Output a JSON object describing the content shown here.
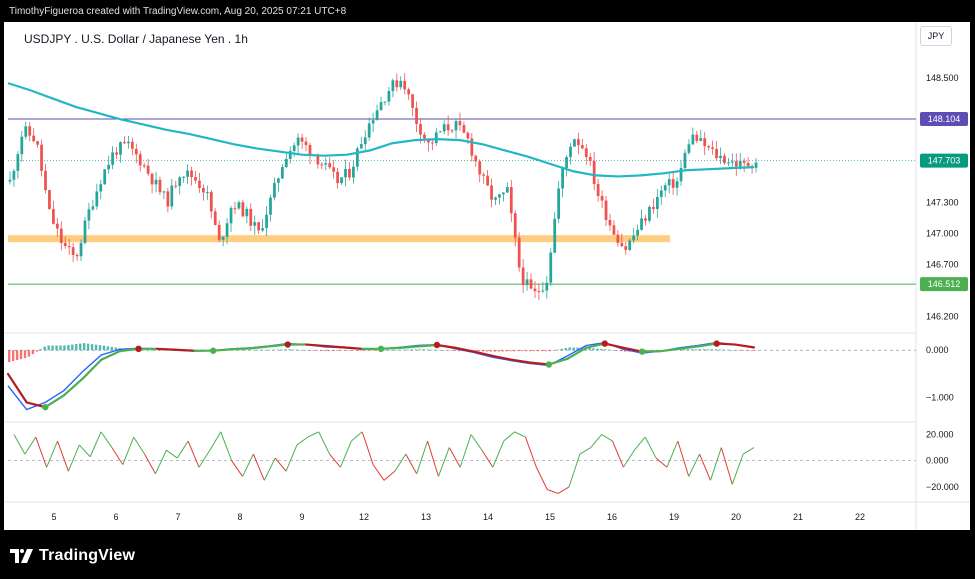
{
  "attribution": "TimothyFigueroa created with TradingView.com, Aug 20, 2025 07:21 UTC+8",
  "symbol_title": "USDJPY . U.S. Dollar / Japanese Yen . 1h",
  "currency": "JPY",
  "brand": "TradingView",
  "colors": {
    "up_candle": "#26a69a",
    "down_candle": "#ef5350",
    "ma_line": "#22b7c4",
    "resistance_line": "#5e4bb3",
    "support_line": "#4caf50",
    "zone": "#ffcc80",
    "macd_line": "#2962ff",
    "signal_up": "#4caf50",
    "signal_down": "#b71c1c"
  },
  "chart_data": [
    {
      "type": "candlestick",
      "symbol": "USDJPY",
      "timeframe": "1h",
      "x_tick_labels": [
        "5",
        "6",
        "7",
        "8",
        "9",
        "12",
        "13",
        "14",
        "15",
        "16",
        "19",
        "20",
        "21",
        "22"
      ],
      "y_tick_labels": [
        "148.500",
        "147.300",
        "147.000",
        "146.700",
        "146.200"
      ],
      "ylim": [
        146.05,
        148.75
      ],
      "price_tags": [
        {
          "label": "148.104",
          "value": 148.104,
          "color": "#5e4bb3"
        },
        {
          "label": "147.703",
          "value": 147.703,
          "color": "#089981"
        },
        {
          "label": "146.512",
          "value": 146.512,
          "color": "#4caf50"
        }
      ],
      "horizontal_lines": [
        {
          "value": 148.104,
          "color": "#5e4bb3"
        },
        {
          "value": 146.512,
          "color": "#4caf50"
        }
      ],
      "zone": {
        "value": 146.95,
        "until": "15"
      },
      "close_path": [
        147.5,
        148.0,
        147.9,
        147.2,
        146.9,
        146.75,
        147.2,
        147.55,
        147.8,
        147.85,
        147.7,
        147.5,
        147.3,
        147.6,
        147.55,
        147.4,
        146.9,
        147.3,
        147.2,
        147.0,
        147.35,
        147.75,
        147.9,
        147.8,
        147.65,
        147.5,
        147.6,
        147.95,
        148.2,
        148.4,
        148.5,
        148.1,
        147.85,
        148.0,
        148.05,
        147.9,
        147.55,
        147.3,
        147.4,
        146.6,
        146.4,
        146.55,
        147.5,
        147.95,
        147.8,
        147.35,
        147.05,
        146.85,
        147.05,
        147.25,
        147.45,
        147.5,
        147.95,
        147.85,
        147.75,
        147.7,
        147.65,
        147.7
      ],
      "moving_average": [
        148.45,
        148.38,
        148.3,
        148.22,
        148.16,
        148.1,
        148.05,
        148.0,
        147.96,
        147.91,
        147.86,
        147.82,
        147.79,
        147.76,
        147.75,
        147.76,
        147.8,
        147.87,
        147.9,
        147.91,
        147.9,
        147.86,
        147.8,
        147.74,
        147.67,
        147.6,
        147.56,
        147.55,
        147.56,
        147.58,
        147.61,
        147.62,
        147.63,
        147.64
      ]
    },
    {
      "type": "line",
      "name": "",
      "y_tick_labels": [
        "0.000",
        "−1.000"
      ],
      "ylim": [
        -1.45,
        0.3
      ],
      "fast_line": [
        -0.75,
        -1.25,
        -1.1,
        -0.85,
        -0.45,
        -0.1,
        0.02,
        0.04,
        0.03,
        0.0,
        -0.02,
        -0.01,
        0.03,
        0.05,
        0.09,
        0.14,
        0.12,
        0.07,
        0.05,
        0.02,
        0.03,
        0.06,
        0.1,
        0.12,
        0.03,
        -0.05,
        -0.15,
        -0.22,
        -0.28,
        -0.32,
        -0.12,
        0.1,
        0.16,
        0.02,
        -0.06,
        -0.02,
        0.05,
        0.1,
        0.16,
        0.12,
        0.05
      ],
      "signal_line": [
        -0.5,
        -1.1,
        -1.2,
        -0.95,
        -0.6,
        -0.2,
        -0.02,
        0.03,
        0.03,
        0.01,
        -0.01,
        -0.01,
        0.02,
        0.04,
        0.08,
        0.12,
        0.12,
        0.09,
        0.06,
        0.03,
        0.03,
        0.05,
        0.08,
        0.11,
        0.05,
        -0.03,
        -0.12,
        -0.2,
        -0.26,
        -0.3,
        -0.18,
        0.05,
        0.14,
        0.05,
        -0.03,
        -0.02,
        0.03,
        0.08,
        0.14,
        0.12,
        0.06
      ],
      "histogram": [
        -0.25,
        -0.15,
        0.1,
        0.1,
        0.15,
        0.1,
        0.04,
        0.01,
        0.0,
        -0.01,
        -0.01,
        0.0,
        0.01,
        0.01,
        0.01,
        0.02,
        0.0,
        -0.02,
        -0.01,
        -0.01,
        0.0,
        0.01,
        0.02,
        0.01,
        -0.02,
        -0.02,
        -0.03,
        -0.02,
        -0.02,
        -0.02,
        0.06,
        0.05,
        0.02,
        -0.03,
        -0.03,
        0.0,
        0.02,
        0.02,
        0.02,
        0.0,
        -0.01
      ]
    },
    {
      "type": "line",
      "name": "",
      "y_tick_labels": [
        "20.000",
        "0.000",
        "−20.000"
      ],
      "ylim": [
        -30,
        28
      ],
      "values": [
        20,
        5,
        18,
        -5,
        15,
        -8,
        12,
        3,
        22,
        10,
        -3,
        18,
        5,
        -10,
        8,
        2,
        15,
        -5,
        8,
        22,
        0,
        -12,
        5,
        -15,
        2,
        -8,
        12,
        18,
        22,
        5,
        -5,
        15,
        22,
        -3,
        -15,
        -8,
        5,
        -10,
        15,
        -12,
        10,
        -5,
        20,
        8,
        -5,
        15,
        22,
        18,
        -5,
        -22,
        -25,
        -20,
        5,
        10,
        20,
        15,
        -5,
        8,
        18,
        2,
        -5,
        15,
        -12,
        5,
        -15,
        10,
        -18,
        5,
        10
      ]
    }
  ]
}
